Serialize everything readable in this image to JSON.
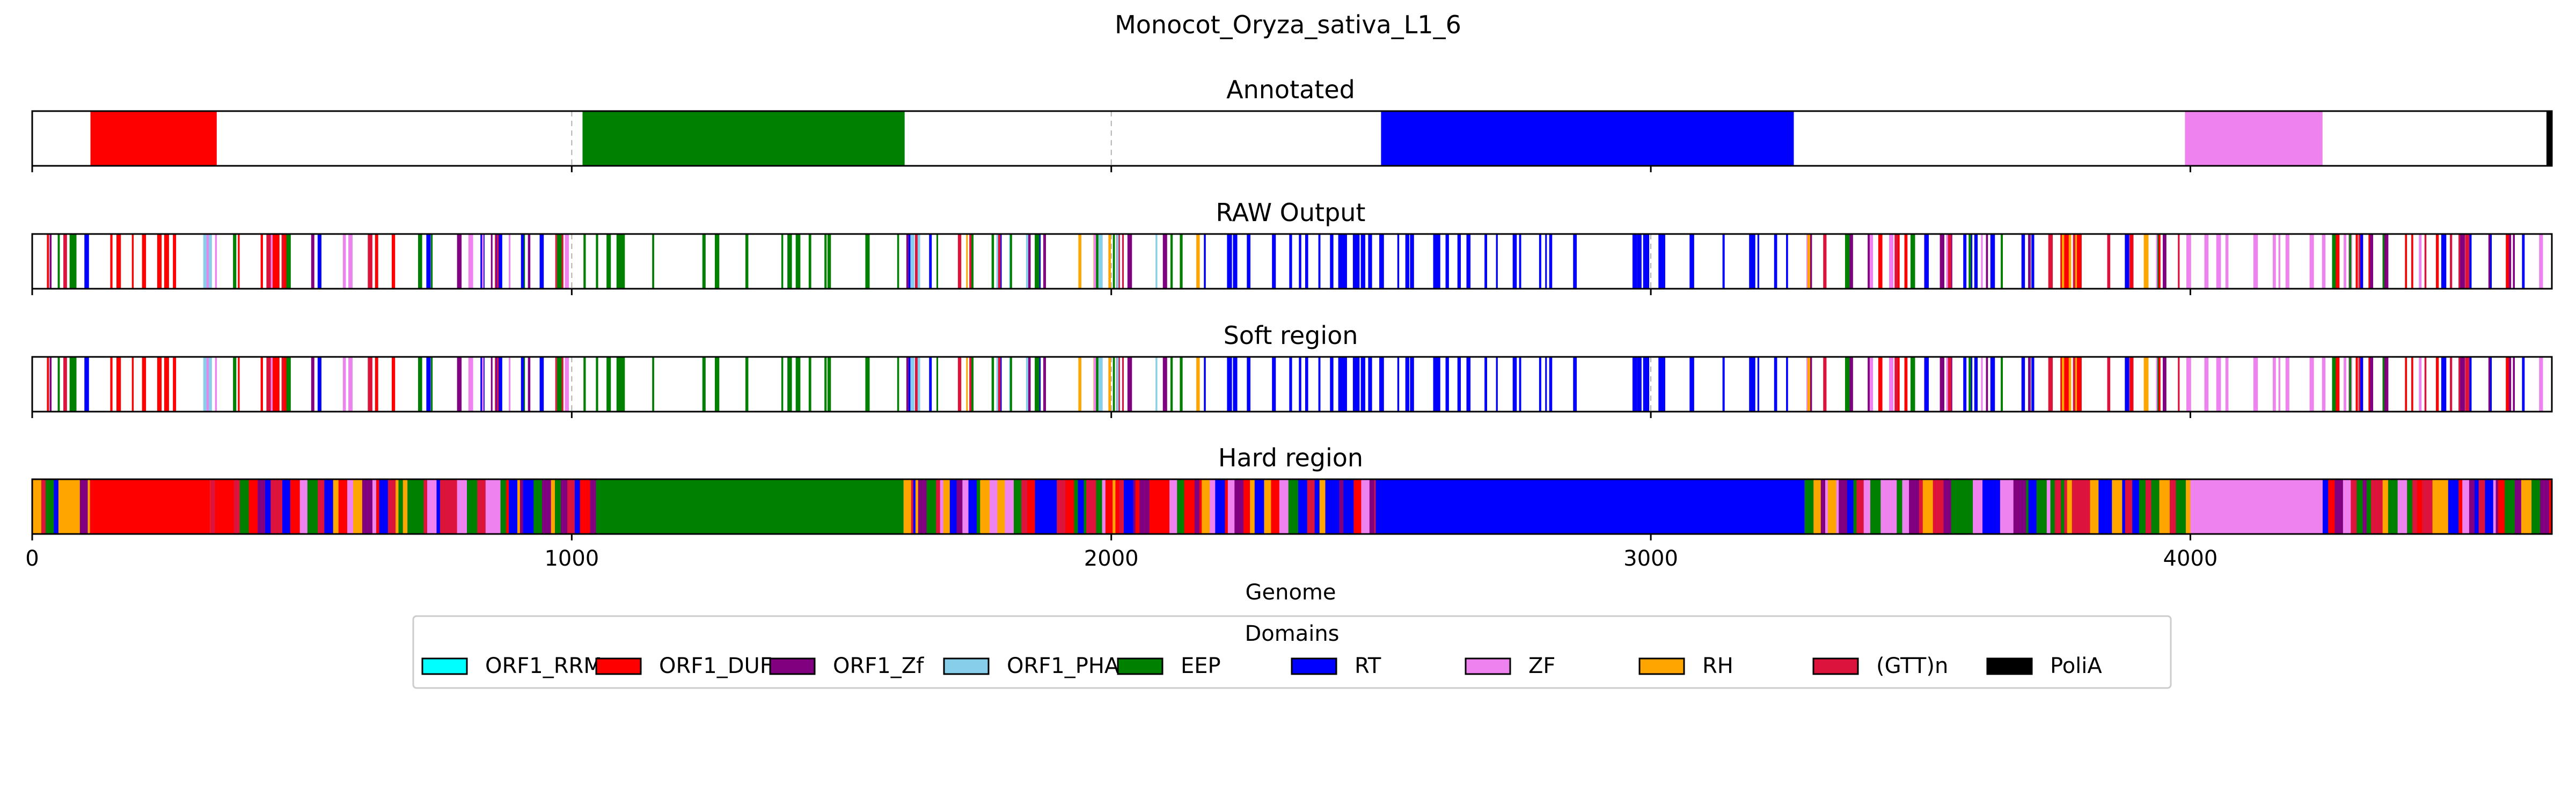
{
  "chart_data": {
    "type": "track",
    "title": "Monocot_Oryza_sativa_L1_6",
    "xlabel": "Genome",
    "xlim": [
      0,
      4670
    ],
    "xticks": [
      0,
      1000,
      2000,
      3000,
      4000
    ],
    "grid": "vertical dashed",
    "colors": {
      "ORF1_RRM": "#00ffff",
      "ORF1_DUF": "#ff0000",
      "ORF1_Zf": "#800080",
      "ORF1_PHA": "#87ceeb",
      "EEP": "#008000",
      "RT": "#0000ff",
      "ZF": "#ee82ee",
      "RH": "#ffa500",
      "(GTT)n": "#dc143c",
      "PoliA": "#000000"
    },
    "legend": {
      "title": "Domains",
      "placement": "bottom-center",
      "entries": [
        "ORF1_RRM",
        "ORF1_DUF",
        "ORF1_Zf",
        "ORF1_PHA",
        "EEP",
        "RT",
        "ZF",
        "RH",
        "(GTT)n",
        "PoliA"
      ]
    },
    "tracks": [
      {
        "title": "Annotated",
        "style": "segments",
        "segments": [
          {
            "domain": "ORF1_DUF",
            "start": 108,
            "end": 342
          },
          {
            "domain": "EEP",
            "start": 1020,
            "end": 1617
          },
          {
            "domain": "RT",
            "start": 2500,
            "end": 3265
          },
          {
            "domain": "ZF",
            "start": 3990,
            "end": 4245
          },
          {
            "domain": "PoliA",
            "start": 4660,
            "end": 4670
          }
        ]
      },
      {
        "title": "RAW Output",
        "style": "stripes",
        "regions": [
          {
            "start": 0,
            "end": 100,
            "domains": [
              "ORF1_DUF",
              "RT",
              "ORF1_Zf",
              "EEP",
              "RH",
              "(GTT)n"
            ],
            "density": 0.7
          },
          {
            "start": 100,
            "end": 300,
            "domains": [
              "ORF1_DUF"
            ],
            "density": 0.45
          },
          {
            "start": 300,
            "end": 680,
            "domains": [
              "RT",
              "ORF1_Zf",
              "ORF1_DUF",
              "EEP",
              "ZF",
              "(GTT)n",
              "ORF1_PHA"
            ],
            "density": 0.8
          },
          {
            "start": 680,
            "end": 1000,
            "domains": [
              "EEP",
              "ORF1_Zf",
              "RT",
              "(GTT)n",
              "ZF"
            ],
            "density": 0.7
          },
          {
            "start": 1000,
            "end": 1620,
            "domains": [
              "EEP"
            ],
            "density": 0.35
          },
          {
            "start": 1620,
            "end": 2160,
            "domains": [
              "RT",
              "EEP",
              "ORF1_Zf",
              "RH",
              "ZF",
              "(GTT)n",
              "ORF1_PHA"
            ],
            "density": 0.8
          },
          {
            "start": 2160,
            "end": 3270,
            "domains": [
              "RT"
            ],
            "density": 0.55
          },
          {
            "start": 3270,
            "end": 3990,
            "domains": [
              "RT",
              "EEP",
              "(GTT)n",
              "ORF1_Zf",
              "ZF",
              "RH",
              "ORF1_DUF"
            ],
            "density": 0.8
          },
          {
            "start": 3990,
            "end": 4250,
            "domains": [
              "ZF"
            ],
            "density": 0.4
          },
          {
            "start": 4250,
            "end": 4670,
            "domains": [
              "RT",
              "(GTT)n",
              "EEP",
              "ORF1_Zf",
              "ZF",
              "ORF1_DUF"
            ],
            "density": 0.85
          }
        ]
      },
      {
        "title": "Soft region",
        "style": "stripes",
        "regions": [
          {
            "start": 0,
            "end": 100,
            "domains": [
              "ORF1_DUF",
              "RT",
              "ORF1_Zf",
              "EEP",
              "RH",
              "(GTT)n"
            ],
            "density": 0.7
          },
          {
            "start": 100,
            "end": 300,
            "domains": [
              "ORF1_DUF"
            ],
            "density": 0.45
          },
          {
            "start": 300,
            "end": 680,
            "domains": [
              "RT",
              "ORF1_Zf",
              "ORF1_DUF",
              "EEP",
              "ZF",
              "(GTT)n",
              "ORF1_PHA"
            ],
            "density": 0.8
          },
          {
            "start": 680,
            "end": 1000,
            "domains": [
              "EEP",
              "ORF1_Zf",
              "RT",
              "(GTT)n",
              "ZF"
            ],
            "density": 0.7
          },
          {
            "start": 1000,
            "end": 1620,
            "domains": [
              "EEP"
            ],
            "density": 0.35
          },
          {
            "start": 1620,
            "end": 2160,
            "domains": [
              "RT",
              "EEP",
              "ORF1_Zf",
              "RH",
              "ZF",
              "(GTT)n",
              "ORF1_PHA"
            ],
            "density": 0.8
          },
          {
            "start": 2160,
            "end": 3270,
            "domains": [
              "RT"
            ],
            "density": 0.55
          },
          {
            "start": 3270,
            "end": 3990,
            "domains": [
              "RT",
              "EEP",
              "(GTT)n",
              "ORF1_Zf",
              "ZF",
              "RH",
              "ORF1_DUF"
            ],
            "density": 0.8
          },
          {
            "start": 3990,
            "end": 4250,
            "domains": [
              "ZF"
            ],
            "density": 0.4
          },
          {
            "start": 4250,
            "end": 4670,
            "domains": [
              "RT",
              "(GTT)n",
              "EEP",
              "ORF1_Zf",
              "ZF",
              "ORF1_DUF"
            ],
            "density": 0.85
          }
        ]
      },
      {
        "title": "Hard region",
        "style": "filled",
        "solid": [
          {
            "domain": "ORF1_DUF",
            "start": 108,
            "end": 330
          },
          {
            "domain": "EEP",
            "start": 1045,
            "end": 1615
          },
          {
            "domain": "RT",
            "start": 2490,
            "end": 3285
          },
          {
            "domain": "ZF",
            "start": 4000,
            "end": 4245
          }
        ],
        "mixed": [
          {
            "start": 0,
            "end": 108,
            "domains": [
              "EEP",
              "RT",
              "ZF",
              "ORF1_Zf",
              "(GTT)n",
              "RH"
            ]
          },
          {
            "start": 330,
            "end": 1045,
            "domains": [
              "RT",
              "EEP",
              "ORF1_Zf",
              "ZF",
              "(GTT)n",
              "ORF1_DUF",
              "RH"
            ]
          },
          {
            "start": 1615,
            "end": 2490,
            "domains": [
              "RT",
              "EEP",
              "ORF1_Zf",
              "ZF",
              "RH",
              "(GTT)n",
              "ORF1_DUF"
            ]
          },
          {
            "start": 3285,
            "end": 4000,
            "domains": [
              "EEP",
              "RT",
              "ORF1_Zf",
              "(GTT)n",
              "RH",
              "ZF"
            ]
          },
          {
            "start": 4245,
            "end": 4670,
            "domains": [
              "RT",
              "(GTT)n",
              "EEP",
              "ORF1_Zf",
              "ZF",
              "ORF1_DUF",
              "RH"
            ]
          }
        ]
      }
    ]
  }
}
